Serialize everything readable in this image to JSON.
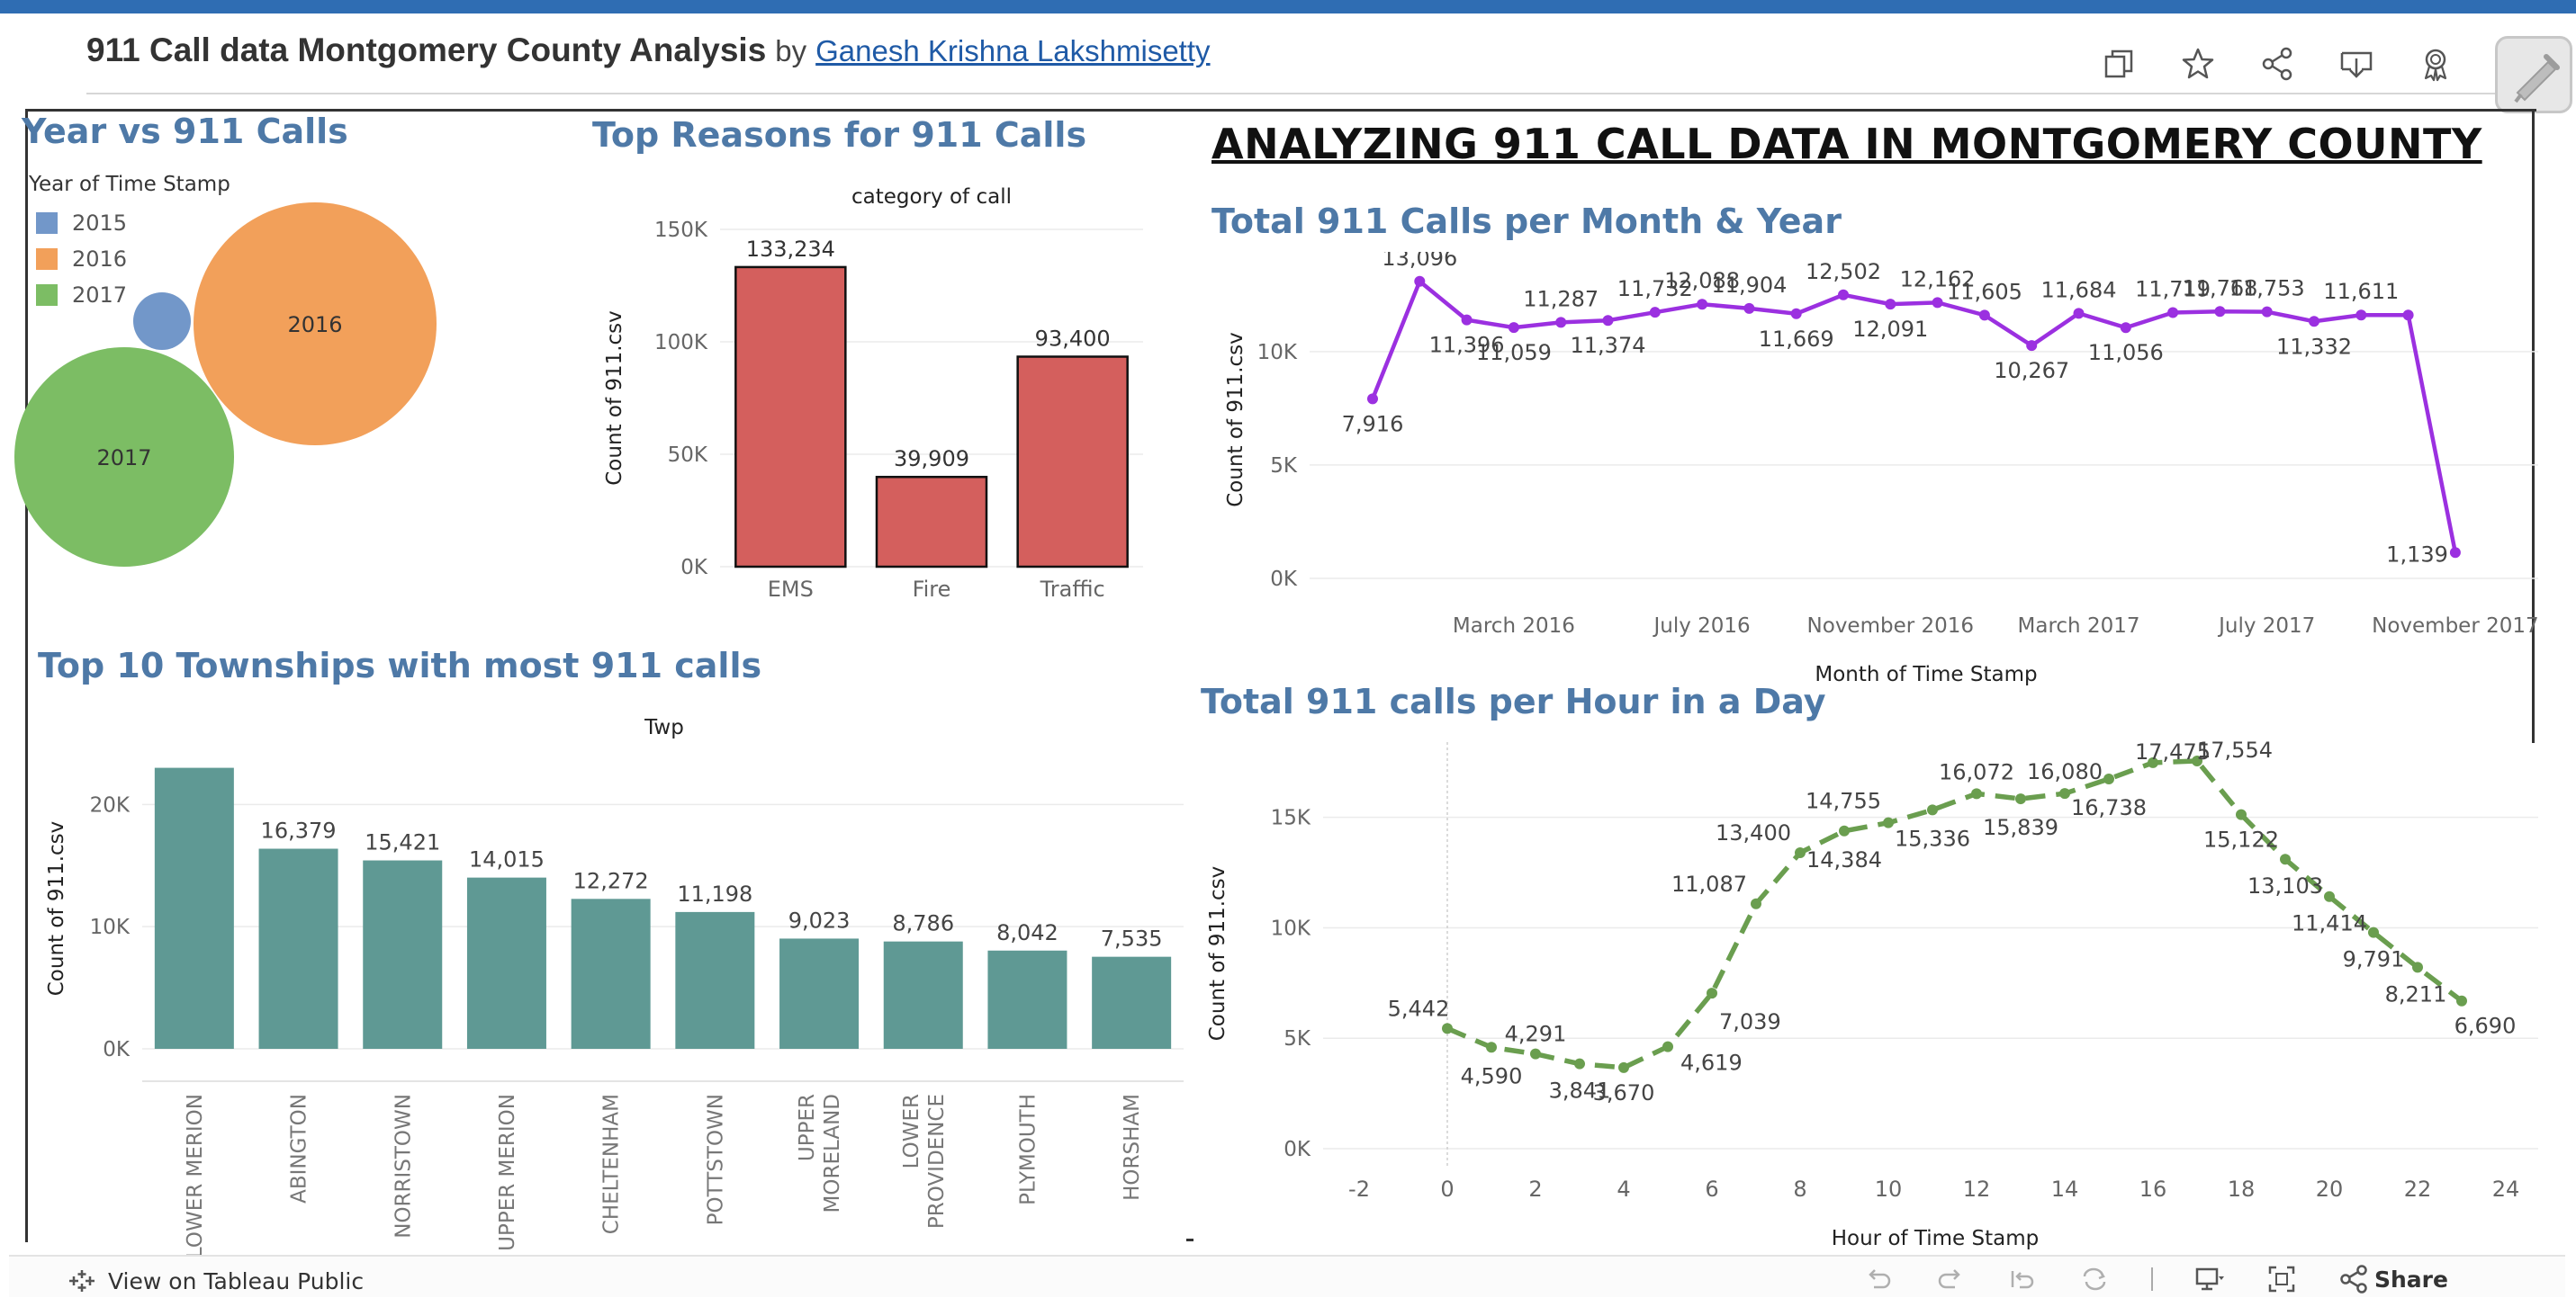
{
  "header": {
    "title": "911 Call data Montgomery County Analysis",
    "by": "by",
    "author": "Ganesh Krishna Lakshmisetty",
    "icons": [
      "copy-icon",
      "star-icon",
      "share-icon",
      "download-icon",
      "badge-icon"
    ]
  },
  "dashboard": {
    "heading": "ANALYZING 911 CALL DATA IN MONTGOMERY COUNTY"
  },
  "bubble": {
    "title": "Year vs 911 Calls",
    "legend_title": "Year of Time Stamp",
    "legend": [
      {
        "label": "2015",
        "color": "#7297c9"
      },
      {
        "label": "2016",
        "color": "#f2a05a"
      },
      {
        "label": "2017",
        "color": "#7cbd64"
      }
    ]
  },
  "chart_data": [
    {
      "id": "year_bubbles",
      "type": "bubble",
      "title": "Year vs 911 Calls",
      "legend_title": "Year of Time Stamp",
      "categories": [
        "2015",
        "2016",
        "2017"
      ],
      "labels": [
        "",
        "2016",
        "2017"
      ],
      "colors": [
        "#7297c9",
        "#f2a05a",
        "#7cbd64"
      ]
    },
    {
      "id": "reasons",
      "type": "bar",
      "title": "Top Reasons for 911 Calls",
      "header": "category of call",
      "ylabel": "Count of 911.csv",
      "categories": [
        "EMS",
        "Fire",
        "Traffic"
      ],
      "values": [
        133234,
        39909,
        93400
      ],
      "value_labels": [
        "133,234",
        "39,909",
        "93,400"
      ],
      "ylim": [
        0,
        150000
      ],
      "yticks": [
        0,
        50000,
        100000,
        150000
      ],
      "ytick_labels": [
        "0K",
        "50K",
        "100K",
        "150K"
      ],
      "color": "#d45f5d"
    },
    {
      "id": "monthly",
      "type": "line",
      "title": "Total 911 Calls per Month & Year",
      "xlabel": "Month of Time Stamp",
      "ylabel": "Count of 911.csv",
      "x": [
        "2015-12",
        "2016-01",
        "2016-02",
        "2016-03",
        "2016-04",
        "2016-05",
        "2016-06",
        "2016-07",
        "2016-08",
        "2016-09",
        "2016-10",
        "2016-11",
        "2016-12",
        "2017-01",
        "2017-02",
        "2017-03",
        "2017-04",
        "2017-05",
        "2017-06",
        "2017-07",
        "2017-08",
        "2017-09",
        "2017-10",
        "2017-11",
        "2017-12"
      ],
      "values": [
        7916,
        13096,
        11396,
        11059,
        11287,
        11374,
        11732,
        12088,
        11904,
        11669,
        12502,
        12091,
        12162,
        11605,
        10267,
        11684,
        11056,
        11719,
        11768,
        11753,
        11332,
        11611,
        11611,
        1139,
        null
      ],
      "value_labels": [
        "7,916",
        "13,096",
        "11,396",
        "11,059",
        "11,287",
        "11,374",
        "11,732",
        "12,088",
        "11,904",
        "11,669",
        "12,502",
        "12,091",
        "12,162",
        "11,605",
        "10,267",
        "11,684",
        "11,056",
        "11,719",
        "11,768",
        "11,753",
        "11,332",
        "11,611",
        "",
        "1,139",
        ""
      ],
      "xtick_labels": [
        "March 2016",
        "July 2016",
        "November 2016",
        "March 2017",
        "July 2017",
        "November 2017"
      ],
      "ylim": [
        0,
        14000
      ],
      "yticks": [
        0,
        5000,
        10000
      ],
      "ytick_labels": [
        "0K",
        "5K",
        "10K"
      ],
      "color": "#9b30e0"
    },
    {
      "id": "townships",
      "type": "bar",
      "title": "Top 10 Townships with most 911 calls",
      "header": "Twp",
      "ylabel": "Count of 911.csv",
      "categories": [
        "LOWER MERION",
        "ABINGTON",
        "NORRISTOWN",
        "UPPER MERION",
        "CHELTENHAM",
        "POTTSTOWN",
        "UPPER MORELAND",
        "LOWER PROVIDENCE",
        "PLYMOUTH",
        "HORSHAM"
      ],
      "category_lines": [
        [
          "LOWER MERION"
        ],
        [
          "ABINGTON"
        ],
        [
          "NORRISTOWN"
        ],
        [
          "UPPER MERION"
        ],
        [
          "CHELTENHAM"
        ],
        [
          "POTTSTOWN"
        ],
        [
          "UPPER",
          "MORELAND"
        ],
        [
          "LOWER",
          "PROVIDENCE"
        ],
        [
          "PLYMOUTH"
        ],
        [
          "HORSHAM"
        ]
      ],
      "values": [
        23000,
        16379,
        15421,
        14015,
        12272,
        11198,
        9023,
        8786,
        8042,
        7535
      ],
      "value_labels": [
        "",
        "16,379",
        "15,421",
        "14,015",
        "12,272",
        "11,198",
        "9,023",
        "8,786",
        "8,042",
        "7,535"
      ],
      "ylim": [
        0,
        24000
      ],
      "yticks": [
        0,
        10000,
        20000
      ],
      "ytick_labels": [
        "0K",
        "10K",
        "20K"
      ],
      "color": "#5f9994"
    },
    {
      "id": "hourly",
      "type": "line",
      "title": "Total 911 calls per Hour in a Day",
      "xlabel": "Hour of Time Stamp",
      "ylabel": "Count of 911.csv",
      "x": [
        0,
        1,
        2,
        3,
        4,
        5,
        6,
        7,
        8,
        9,
        10,
        11,
        12,
        13,
        14,
        15,
        16,
        17,
        18,
        19,
        20,
        21,
        22,
        23
      ],
      "values": [
        5442,
        4590,
        4291,
        3841,
        3670,
        4619,
        7039,
        11087,
        13400,
        14384,
        14755,
        15336,
        16072,
        15839,
        16080,
        16738,
        17475,
        17554,
        15122,
        13103,
        11414,
        9791,
        8211,
        6690
      ],
      "value_labels": [
        "5,442",
        "4,590",
        "4,291",
        "3,841",
        "3,670",
        "4,619",
        "7,039",
        "11,087",
        "13,400",
        "14,384",
        "14,755",
        "15,336",
        "16,072",
        "15,839",
        "16,080",
        "16,738",
        "17,475",
        "17,554",
        "15,122",
        "13,103",
        "11,414",
        "9,791",
        "8,211",
        "6,690"
      ],
      "xlim": [
        -2,
        24
      ],
      "xticks": [
        -2,
        0,
        2,
        4,
        6,
        8,
        10,
        12,
        14,
        16,
        18,
        20,
        22,
        24
      ],
      "ylim": [
        0,
        18000
      ],
      "yticks": [
        0,
        5000,
        10000,
        15000
      ],
      "ytick_labels": [
        "0K",
        "5K",
        "10K",
        "15K"
      ],
      "line_style": "dashed",
      "color": "#6a9e4f"
    }
  ],
  "footer": {
    "view_label": "View on Tableau Public",
    "share_label": "Share",
    "icons": [
      "undo-icon",
      "redo-icon",
      "revert-icon",
      "refresh-icon",
      "device-preview-icon",
      "fullscreen-icon",
      "share-icon"
    ]
  }
}
